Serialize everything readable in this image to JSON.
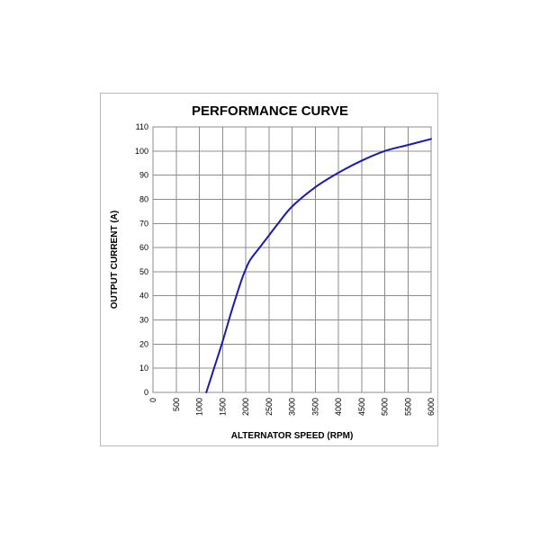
{
  "chart_data": {
    "type": "line",
    "title": "PERFORMANCE CURVE",
    "xlabel": "ALTERNATOR SPEED (RPM)",
    "ylabel": "OUTPUT CURRENT (A)",
    "xlim": [
      0,
      6000
    ],
    "ylim": [
      0,
      110
    ],
    "x_ticks": [
      "0",
      "500",
      "1000",
      "1500",
      "2000",
      "2500",
      "3000",
      "3500",
      "4000",
      "4500",
      "5000",
      "5500",
      "6000"
    ],
    "y_ticks": [
      "0",
      "10",
      "20",
      "30",
      "40",
      "50",
      "60",
      "70",
      "80",
      "90",
      "100",
      "110"
    ],
    "grid": true,
    "legend": "none",
    "series": [
      {
        "color": "#1a1ab0",
        "x": [
          1150,
          1300,
          1500,
          1700,
          1900,
          2000,
          2100,
          2300,
          2500,
          2700,
          3000,
          3500,
          4000,
          4500,
          5000,
          5500,
          6000
        ],
        "y": [
          0,
          9,
          21,
          34,
          46,
          51,
          55,
          60,
          65,
          70,
          77,
          85,
          91,
          96,
          100,
          102.5,
          105
        ]
      }
    ]
  }
}
